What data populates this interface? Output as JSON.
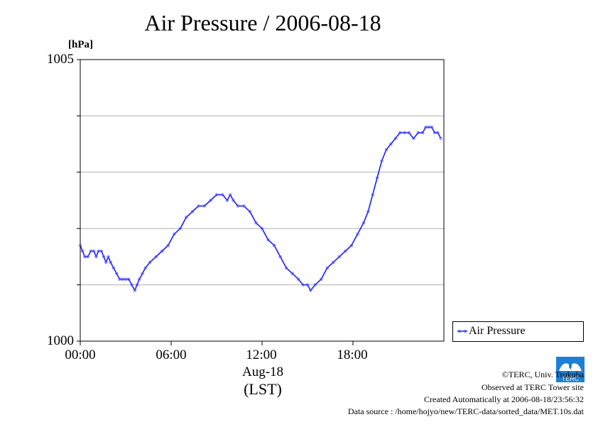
{
  "chart_data": {
    "type": "line",
    "title": "Air Pressure / 2006-08-18",
    "ylabel": "[hPa]",
    "ylim": [
      1000,
      1005
    ],
    "yticks": [
      1000,
      1001,
      1002,
      1003,
      1004,
      1005
    ],
    "ytick_labels": [
      "1000",
      "1005"
    ],
    "xlim": [
      "00:00",
      "24:00"
    ],
    "xtick_labels": [
      "00:00",
      "06:00",
      "12:00",
      "18:00"
    ],
    "xtick_hours": [
      0,
      6,
      12,
      18
    ],
    "xlabel_date": "Aug-18",
    "xlabel_unit": "(LST)",
    "grid": "horizontal",
    "legend": "outside-bottom-right",
    "series": [
      {
        "name": "Air Pressure",
        "color": "#1a1aff",
        "marker": "circle",
        "x": [
          0,
          0.15,
          0.3,
          0.5,
          0.7,
          0.9,
          1.05,
          1.2,
          1.4,
          1.55,
          1.7,
          1.85,
          2.0,
          2.2,
          2.4,
          2.6,
          2.8,
          3.0,
          3.2,
          3.4,
          3.6,
          3.75,
          3.9,
          4.1,
          4.3,
          4.6,
          5.0,
          5.4,
          5.8,
          6.2,
          6.6,
          7.0,
          7.4,
          7.8,
          8.2,
          8.6,
          9.0,
          9.4,
          9.7,
          9.9,
          10.1,
          10.4,
          10.8,
          11.2,
          11.6,
          12.0,
          12.4,
          12.8,
          13.2,
          13.6,
          14.0,
          14.4,
          14.7,
          15.0,
          15.2,
          15.5,
          15.9,
          16.3,
          16.7,
          17.1,
          17.5,
          17.9,
          18.3,
          18.7,
          19.0,
          19.3,
          19.6,
          19.9,
          20.2,
          20.5,
          20.8,
          21.1,
          21.4,
          21.7,
          22.0,
          22.3,
          22.6,
          22.8,
          23.0,
          23.2,
          23.4,
          23.6,
          23.8
        ],
        "y": [
          1001.7,
          1001.6,
          1001.5,
          1001.5,
          1001.6,
          1001.6,
          1001.5,
          1001.6,
          1001.6,
          1001.5,
          1001.4,
          1001.5,
          1001.4,
          1001.3,
          1001.2,
          1001.1,
          1001.1,
          1001.1,
          1001.1,
          1001.0,
          1000.9,
          1001.0,
          1001.1,
          1001.2,
          1001.3,
          1001.4,
          1001.5,
          1001.6,
          1001.7,
          1001.9,
          1002.0,
          1002.2,
          1002.3,
          1002.4,
          1002.4,
          1002.5,
          1002.6,
          1002.6,
          1002.5,
          1002.6,
          1002.5,
          1002.4,
          1002.4,
          1002.3,
          1002.1,
          1002.0,
          1001.8,
          1001.7,
          1001.5,
          1001.3,
          1001.2,
          1001.1,
          1001.0,
          1001.0,
          1000.9,
          1001.0,
          1001.1,
          1001.3,
          1001.4,
          1001.5,
          1001.6,
          1001.7,
          1001.9,
          1002.1,
          1002.3,
          1002.6,
          1002.9,
          1003.2,
          1003.4,
          1003.5,
          1003.6,
          1003.7,
          1003.7,
          1003.7,
          1003.6,
          1003.7,
          1003.7,
          1003.8,
          1003.8,
          1003.8,
          1003.7,
          1003.7,
          1003.6
        ]
      }
    ]
  },
  "credits": {
    "copyright": "©TERC, Univ. Tsukuba",
    "observed": "Observed at TERC Tower site",
    "created": "Created Automatically at 2006-08-18/23:56:32",
    "source": "Data source : /home/hojyo/new/TERC-data/sorted_data/MET.10s.dat",
    "logo_text": "TERC"
  }
}
